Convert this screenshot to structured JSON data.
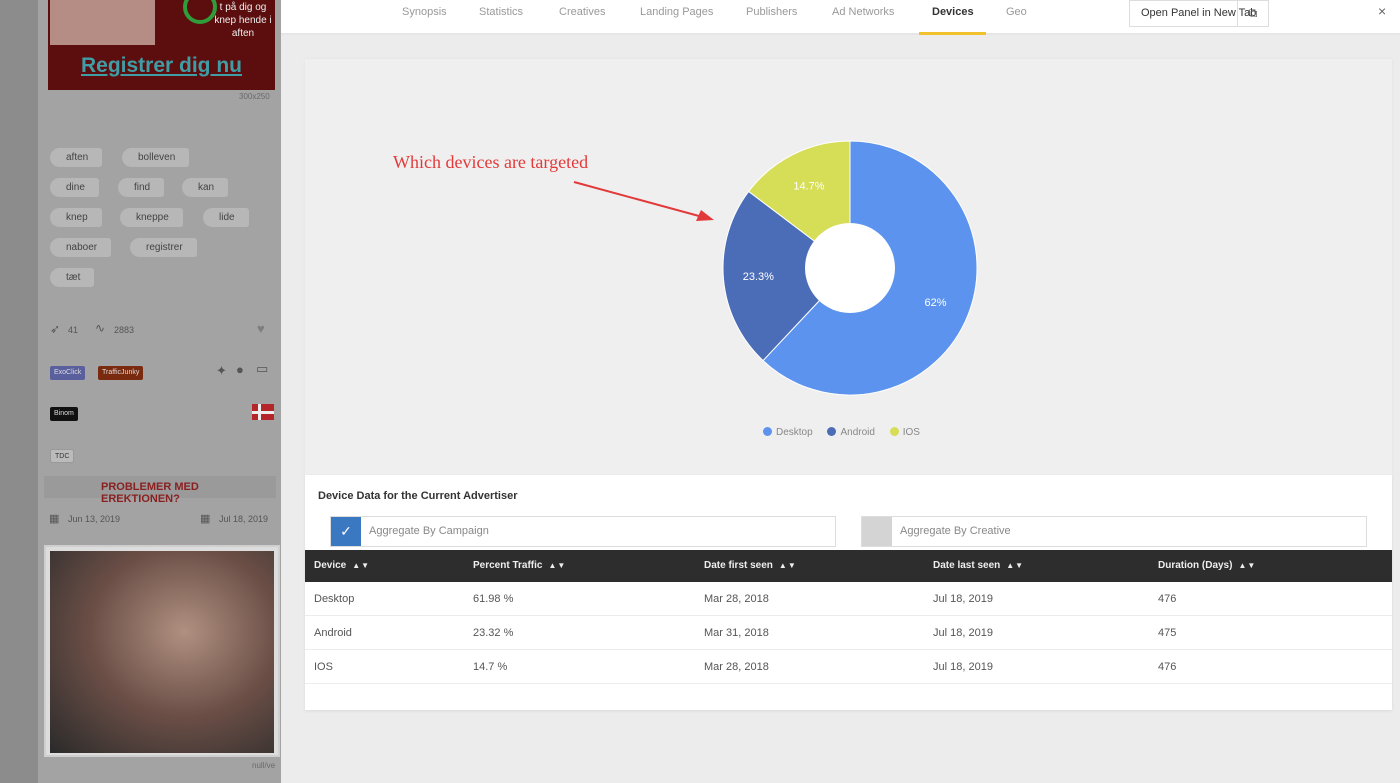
{
  "colors": {
    "desktop": "#5b93ee",
    "android": "#4b6db7",
    "ios": "#d6dd56",
    "accent_tab": "#f2c12e",
    "annotation": "#e23a3a",
    "checkbox_on": "#3a78c2",
    "checkbox_off": "#d4d4d4"
  },
  "left_panel": {
    "ad": {
      "text": "t på dig og knep hende i aften",
      "cta": "Registrer dig nu",
      "size_label": "300x250"
    },
    "tags": [
      "aften",
      "bolleven",
      "dine",
      "find",
      "kan",
      "knep",
      "kneppe",
      "lide",
      "naboer",
      "registrer",
      "tæt"
    ],
    "stats": {
      "launches": "41",
      "impressions": "2883"
    },
    "networks": [
      "ExoClick",
      "TrafficJunky"
    ],
    "tracker": "Binom",
    "isp": "TDC",
    "ad2_text": "PROBLEMER MED EREKTIONEN?",
    "first_seen": "Jun 13, 2019",
    "last_seen": "Jul 18, 2019",
    "size_label_2": "null/ve"
  },
  "nav": {
    "tabs": [
      "Synopsis",
      "Statistics",
      "Creatives",
      "Landing Pages",
      "Publishers",
      "Ad Networks",
      "Devices",
      "Geo"
    ],
    "active": "Devices",
    "open_panel": "Open Panel in New Tab",
    "close": "×"
  },
  "annotation": "Which devices are targeted",
  "chart_data": {
    "type": "pie",
    "donut": true,
    "categories": [
      "Desktop",
      "Android",
      "IOS"
    ],
    "values": [
      62,
      23.3,
      14.7
    ],
    "labels": [
      "62%",
      "23.3%",
      "14.7%"
    ],
    "legend": [
      "Desktop",
      "Android",
      "IOS"
    ],
    "legend_position": "bottom"
  },
  "device_data": {
    "title": "Device Data for the Current Advertiser",
    "aggregate_campaign": "Aggregate By Campaign",
    "aggregate_creative": "Aggregate By Creative",
    "campaign_checked": true,
    "creative_checked": false,
    "columns": [
      "Device",
      "Percent Traffic",
      "Date first seen",
      "Date last seen",
      "Duration (Days)"
    ],
    "rows": [
      [
        "Desktop",
        "61.98 %",
        "Mar 28, 2018",
        "Jul 18, 2019",
        "476"
      ],
      [
        "Android",
        "23.32 %",
        "Mar 31, 2018",
        "Jul 18, 2019",
        "475"
      ],
      [
        "IOS",
        "14.7 %",
        "Mar 28, 2018",
        "Jul 18, 2019",
        "476"
      ]
    ]
  }
}
